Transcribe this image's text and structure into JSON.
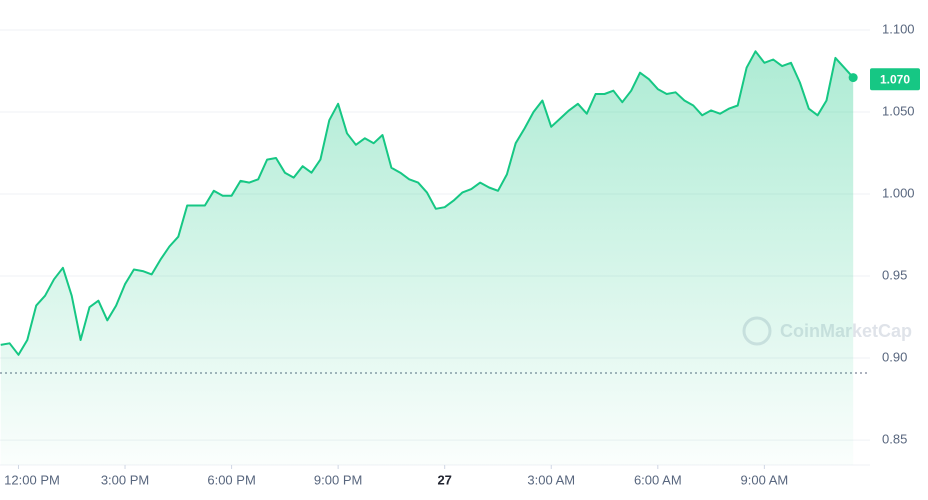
{
  "chart_data": {
    "type": "area",
    "x": [
      -0.5,
      -0.25,
      0,
      0.25,
      0.5,
      0.75,
      1,
      1.25,
      1.5,
      1.75,
      2,
      2.25,
      2.5,
      2.75,
      3,
      3.25,
      3.5,
      3.75,
      4,
      4.25,
      4.5,
      4.75,
      5,
      5.25,
      5.5,
      5.75,
      6,
      6.25,
      6.5,
      6.75,
      7,
      7.25,
      7.5,
      7.75,
      8,
      8.25,
      8.5,
      8.75,
      9,
      9.25,
      9.5,
      9.75,
      10,
      10.25,
      10.5,
      10.75,
      11,
      11.25,
      11.5,
      11.75,
      12,
      12.25,
      12.5,
      12.75,
      13,
      13.25,
      13.5,
      13.75,
      14,
      14.25,
      14.5,
      14.75,
      15,
      15.25,
      15.5,
      15.75,
      16,
      16.25,
      16.5,
      16.75,
      17,
      17.25,
      17.5,
      17.75,
      18,
      18.25,
      18.5,
      18.75,
      19,
      19.25,
      19.5,
      19.75,
      20,
      20.25,
      20.5,
      20.75,
      21,
      21.25,
      21.5,
      21.75,
      22,
      22.25,
      22.5,
      22.75,
      23,
      23.25,
      23.5
    ],
    "series": [
      {
        "color": "#16c784",
        "values": [
          0.908,
          0.909,
          0.902,
          0.911,
          0.932,
          0.938,
          0.948,
          0.955,
          0.938,
          0.911,
          0.931,
          0.935,
          0.923,
          0.932,
          0.945,
          0.954,
          0.953,
          0.951,
          0.96,
          0.968,
          0.974,
          0.993,
          0.993,
          0.993,
          1.002,
          0.999,
          0.999,
          1.008,
          1.007,
          1.009,
          1.021,
          1.022,
          1.013,
          1.01,
          1.017,
          1.013,
          1.021,
          1.045,
          1.055,
          1.037,
          1.03,
          1.034,
          1.031,
          1.036,
          1.016,
          1.013,
          1.009,
          1.007,
          1.001,
          0.991,
          0.992,
          0.996,
          1.001,
          1.003,
          1.007,
          1.004,
          1.002,
          1.012,
          1.031,
          1.04,
          1.05,
          1.057,
          1.041,
          1.046,
          1.051,
          1.055,
          1.049,
          1.061,
          1.061,
          1.063,
          1.056,
          1.063,
          1.074,
          1.07,
          1.064,
          1.061,
          1.062,
          1.057,
          1.054,
          1.048,
          1.051,
          1.049,
          1.052,
          1.054,
          1.077,
          1.087,
          1.08,
          1.082,
          1.078,
          1.08,
          1.068,
          1.052,
          1.048,
          1.057,
          1.083,
          1.077,
          1.071
        ]
      }
    ],
    "current_price": {
      "value": 1.07,
      "label": "1.070"
    },
    "watermark": "CoinMarketCap",
    "xlim": [
      -0.52,
      23.58
    ],
    "xticks": [
      {
        "value": 0,
        "label": "12:00 PM"
      },
      {
        "value": 3,
        "label": "3:00 PM"
      },
      {
        "value": 6,
        "label": "6:00 PM"
      },
      {
        "value": 9,
        "label": "9:00 PM"
      },
      {
        "value": 12,
        "label": "27"
      },
      {
        "value": 15,
        "label": "3:00 AM"
      },
      {
        "value": 18,
        "label": "6:00 AM"
      },
      {
        "value": 21,
        "label": "9:00 AM"
      }
    ],
    "ylim": [
      0.8348,
      1.1183
    ],
    "yticks": [
      0.85,
      {
        "value": 0.9,
        "label": "0.90"
      },
      0.95,
      {
        "value": 1.0,
        "label": "1.000"
      },
      {
        "value": 1.05,
        "label": "1.050"
      },
      {
        "value": 1.1,
        "label": "1.100"
      }
    ],
    "grid": true
  }
}
